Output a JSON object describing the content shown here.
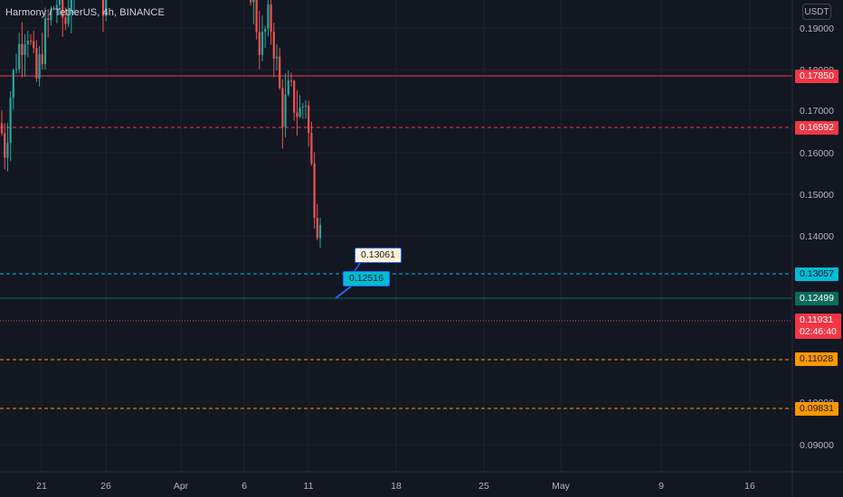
{
  "header": {
    "title": "Harmony / TetherUS, 4h, BINANCE",
    "currency": "USDT"
  },
  "price_axis": {
    "ticks": [
      "0.19000",
      "0.18000",
      "0.17000",
      "0.16000",
      "0.15000",
      "0.14000",
      "0.10000",
      "0.09000"
    ]
  },
  "time_axis": {
    "ticks": [
      "21",
      "26",
      "Apr",
      "6",
      "11",
      "18",
      "25",
      "May",
      "9",
      "16"
    ]
  },
  "levels": [
    {
      "value": "0.17850",
      "color": "#f23645",
      "style": "solid"
    },
    {
      "value": "0.16592",
      "color": "#f23645",
      "style": "dashed"
    },
    {
      "value": "0.13057",
      "color": "#00bcd4",
      "style": "dashed"
    },
    {
      "value": "0.12499",
      "color": "#0b6b5c",
      "style": "solid"
    },
    {
      "value": "0.11028",
      "color": "#ff9800",
      "style": "dashed"
    },
    {
      "value": "0.09831",
      "color": "#ff9800",
      "style": "dashed"
    }
  ],
  "current_price": {
    "value": "0.11931",
    "countdown": "02:46:40",
    "color": "#f23645"
  },
  "callouts": [
    {
      "value": "0.13061"
    },
    {
      "value": "0.12516"
    }
  ],
  "colors": {
    "background": "#131722",
    "up": "#26a69a",
    "down": "#ef5350",
    "grid": "#1e222d"
  }
}
